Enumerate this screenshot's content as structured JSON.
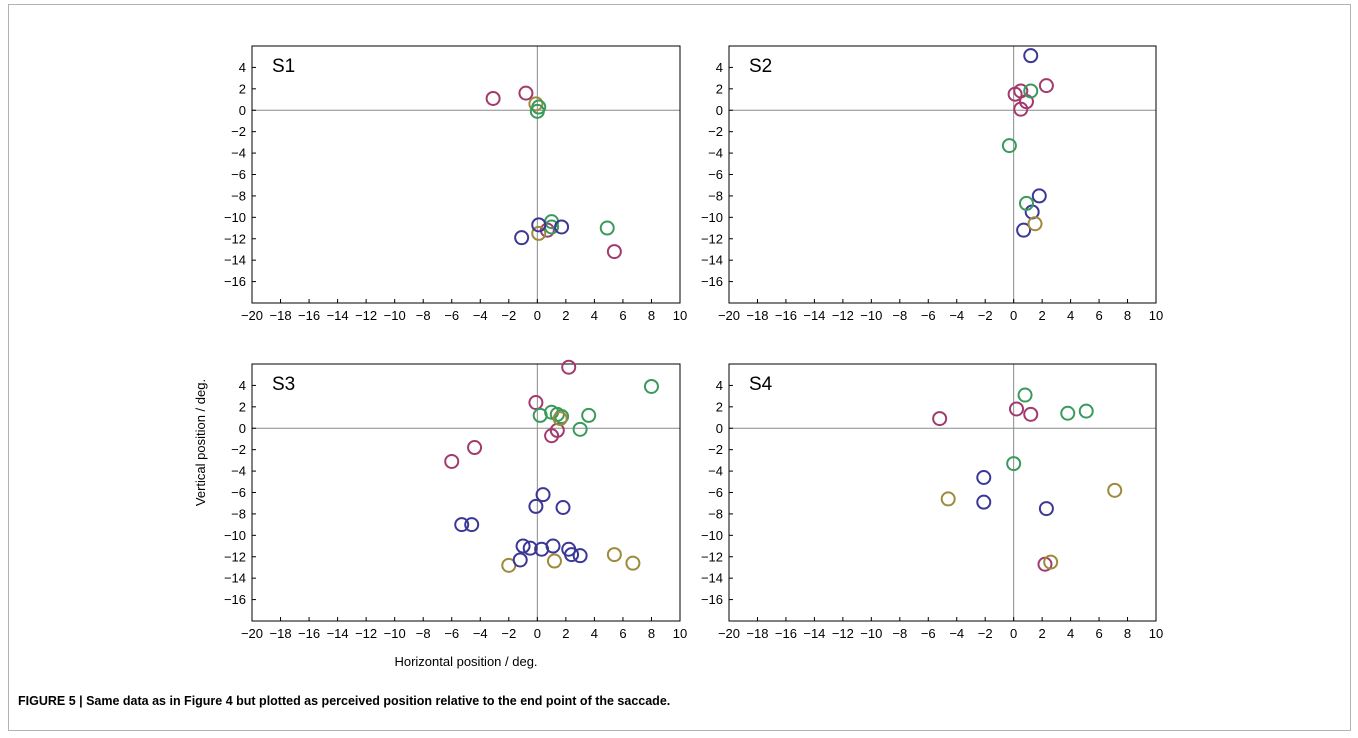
{
  "caption": "FIGURE 5 | Same data as in Figure 4 but plotted as perceived position relative to the end point of the saccade.",
  "colors": {
    "blue": "#3b3796",
    "green": "#3a9a5c",
    "magenta": "#a23a6e",
    "olive": "#9d8a3a"
  },
  "chart_data": [
    {
      "type": "scatter",
      "panel_label": "S1",
      "xlim": [
        -20,
        10
      ],
      "ylim": [
        -18,
        6
      ],
      "xticks": [
        -20,
        -18,
        -16,
        -14,
        -12,
        -10,
        -8,
        -6,
        -4,
        -2,
        0,
        2,
        4,
        6,
        8,
        10
      ],
      "yticks": [
        4,
        2,
        0,
        -2,
        -4,
        -6,
        -8,
        -10,
        -12,
        -14,
        -16
      ],
      "xlabel": "",
      "ylabel": "",
      "series": [
        {
          "color": "magenta",
          "points": [
            [
              -3.1,
              1.1
            ],
            [
              -0.8,
              1.6
            ],
            [
              0.7,
              -11.2
            ],
            [
              5.4,
              -13.2
            ]
          ]
        },
        {
          "color": "olive",
          "points": [
            [
              -0.1,
              0.6
            ],
            [
              0.1,
              -11.5
            ]
          ]
        },
        {
          "color": "green",
          "points": [
            [
              0.1,
              0.3
            ],
            [
              0.0,
              -0.1
            ],
            [
              1.0,
              -10.4
            ],
            [
              1.0,
              -10.9
            ],
            [
              4.9,
              -11.0
            ]
          ]
        },
        {
          "color": "blue",
          "points": [
            [
              0.1,
              -10.7
            ],
            [
              1.7,
              -10.9
            ],
            [
              -1.1,
              -11.9
            ]
          ]
        }
      ]
    },
    {
      "type": "scatter",
      "panel_label": "S2",
      "xlim": [
        -20,
        10
      ],
      "ylim": [
        -18,
        6
      ],
      "xticks": [
        -20,
        -18,
        -16,
        -14,
        -12,
        -10,
        -8,
        -6,
        -4,
        -2,
        0,
        2,
        4,
        6,
        8,
        10
      ],
      "yticks": [
        4,
        2,
        0,
        -2,
        -4,
        -6,
        -8,
        -10,
        -12,
        -14,
        -16
      ],
      "xlabel": "",
      "ylabel": "",
      "series": [
        {
          "color": "blue",
          "points": [
            [
              1.2,
              5.1
            ],
            [
              1.8,
              -8.0
            ],
            [
              1.3,
              -9.5
            ],
            [
              0.7,
              -11.2
            ]
          ]
        },
        {
          "color": "magenta",
          "points": [
            [
              0.5,
              1.8
            ],
            [
              0.1,
              1.5
            ],
            [
              2.3,
              2.3
            ],
            [
              0.9,
              0.8
            ],
            [
              0.5,
              0.1
            ]
          ]
        },
        {
          "color": "green",
          "points": [
            [
              1.2,
              1.8
            ],
            [
              -0.3,
              -3.3
            ],
            [
              0.9,
              -8.7
            ]
          ]
        },
        {
          "color": "olive",
          "points": [
            [
              1.5,
              -10.6
            ]
          ]
        }
      ]
    },
    {
      "type": "scatter",
      "panel_label": "S3",
      "xlim": [
        -20,
        10
      ],
      "ylim": [
        -18,
        6
      ],
      "xticks": [
        -20,
        -18,
        -16,
        -14,
        -12,
        -10,
        -8,
        -6,
        -4,
        -2,
        0,
        2,
        4,
        6,
        8,
        10
      ],
      "yticks": [
        4,
        2,
        0,
        -2,
        -4,
        -6,
        -8,
        -10,
        -12,
        -14,
        -16
      ],
      "xlabel": "Horizontal position / deg.",
      "ylabel": "Vertical position / deg.",
      "series": [
        {
          "color": "magenta",
          "points": [
            [
              2.2,
              5.7
            ],
            [
              -0.1,
              2.4
            ],
            [
              -4.4,
              -1.8
            ],
            [
              -6.0,
              -3.1
            ],
            [
              1.0,
              -0.7
            ],
            [
              1.4,
              -0.2
            ]
          ]
        },
        {
          "color": "green",
          "points": [
            [
              8.0,
              3.9
            ],
            [
              0.2,
              1.2
            ],
            [
              1.0,
              1.5
            ],
            [
              1.4,
              1.3
            ],
            [
              1.7,
              1.1
            ],
            [
              3.6,
              1.2
            ],
            [
              3.0,
              -0.1
            ]
          ]
        },
        {
          "color": "olive",
          "points": [
            [
              1.6,
              0.9
            ],
            [
              5.4,
              -11.8
            ],
            [
              6.7,
              -12.6
            ],
            [
              1.2,
              -12.4
            ],
            [
              -2.0,
              -12.8
            ]
          ]
        },
        {
          "color": "blue",
          "points": [
            [
              0.4,
              -6.2
            ],
            [
              -0.1,
              -7.3
            ],
            [
              1.8,
              -7.4
            ],
            [
              -5.3,
              -9.0
            ],
            [
              -4.6,
              -9.0
            ],
            [
              -1.0,
              -11.0
            ],
            [
              -0.5,
              -11.2
            ],
            [
              0.3,
              -11.3
            ],
            [
              1.1,
              -11.0
            ],
            [
              2.2,
              -11.3
            ],
            [
              2.4,
              -11.8
            ],
            [
              3.0,
              -11.9
            ],
            [
              -1.2,
              -12.3
            ]
          ]
        }
      ]
    },
    {
      "type": "scatter",
      "panel_label": "S4",
      "xlim": [
        -20,
        10
      ],
      "ylim": [
        -18,
        6
      ],
      "xticks": [
        -20,
        -18,
        -16,
        -14,
        -12,
        -10,
        -8,
        -6,
        -4,
        -2,
        0,
        2,
        4,
        6,
        8,
        10
      ],
      "yticks": [
        4,
        2,
        0,
        -2,
        -4,
        -6,
        -8,
        -10,
        -12,
        -14,
        -16
      ],
      "xlabel": "",
      "ylabel": "",
      "series": [
        {
          "color": "green",
          "points": [
            [
              0.8,
              3.1
            ],
            [
              3.8,
              1.4
            ],
            [
              5.1,
              1.6
            ],
            [
              0.0,
              -3.3
            ]
          ]
        },
        {
          "color": "magenta",
          "points": [
            [
              -5.2,
              0.9
            ],
            [
              0.2,
              1.8
            ],
            [
              1.2,
              1.3
            ],
            [
              2.2,
              -12.7
            ]
          ]
        },
        {
          "color": "blue",
          "points": [
            [
              -2.1,
              -4.6
            ],
            [
              -2.1,
              -6.9
            ],
            [
              2.3,
              -7.5
            ]
          ]
        },
        {
          "color": "olive",
          "points": [
            [
              -4.6,
              -6.6
            ],
            [
              7.1,
              -5.8
            ],
            [
              2.6,
              -12.5
            ]
          ]
        }
      ]
    }
  ]
}
